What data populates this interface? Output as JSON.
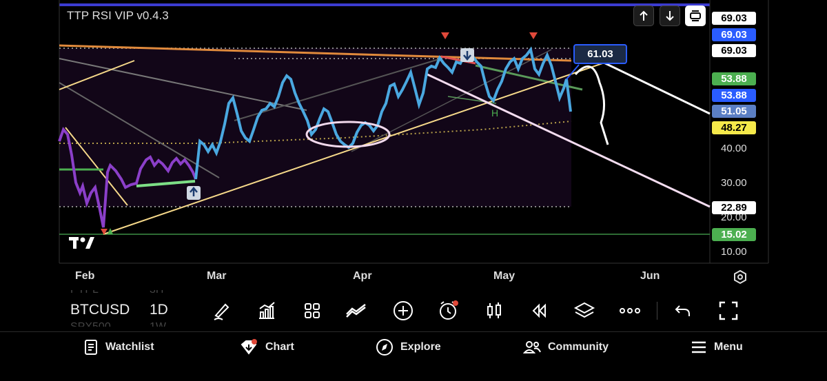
{
  "indicator": {
    "title": "TTP RSI VIP v0.4.3"
  },
  "tags": {
    "rsi_current": "61.03",
    "right_axis": [
      {
        "value": "69.03",
        "bg": "#ffffff",
        "fg": "#000000"
      },
      {
        "value": "69.03",
        "bg": "#2a5cff",
        "fg": "#ffffff"
      },
      {
        "value": "69.03",
        "bg": "#ffffff",
        "fg": "#000000"
      },
      {
        "value": "53.88",
        "bg": "#4caf50",
        "fg": "#ffffff"
      },
      {
        "value": "53.88",
        "bg": "#2a5cff",
        "fg": "#ffffff"
      },
      {
        "value": "51.05",
        "bg": "#5b7fc4",
        "fg": "#ffffff"
      },
      {
        "value": "48.27",
        "bg": "#f5e94a",
        "fg": "#000000"
      },
      {
        "value": "22.89",
        "bg": "#ffffff",
        "fg": "#000000"
      },
      {
        "value": "15.02",
        "bg": "#4caf50",
        "fg": "#ffffff"
      }
    ]
  },
  "axis": {
    "y_ticks": [
      "40.00",
      "30.00",
      "20.00",
      "10.00"
    ],
    "months": [
      "Feb",
      "Mar",
      "Apr",
      "May",
      "Jun"
    ]
  },
  "annotations": {
    "pattern_label": "H"
  },
  "symbol": {
    "ticker": "BTCUSD",
    "interval": "1D",
    "ghost_above_ticker": "PYPL",
    "ghost_above_interval": "3H",
    "ghost_below_ticker": "SPX500",
    "ghost_below_interval": "1W"
  },
  "toolbar": {
    "tools": [
      "draw-icon",
      "indicators-icon",
      "layouts-icon",
      "compare-icon",
      "add-icon",
      "alert-icon",
      "candles-icon",
      "replay-icon",
      "layers-icon",
      "more-icon",
      "undo-icon",
      "fullscreen-icon"
    ]
  },
  "nav": {
    "items": [
      {
        "label": "Watchlist",
        "icon": "watchlist-icon"
      },
      {
        "label": "Chart",
        "icon": "chart-icon"
      },
      {
        "label": "Explore",
        "icon": "explore-icon"
      },
      {
        "label": "Community",
        "icon": "community-icon"
      },
      {
        "label": "Menu",
        "icon": "menu-icon"
      }
    ]
  },
  "colors": {
    "rsi_line": "#4aa8e0",
    "rsi_line_low": "#8b3fc9",
    "accent_blue": "#2a5cff",
    "bg": "#000000"
  }
}
